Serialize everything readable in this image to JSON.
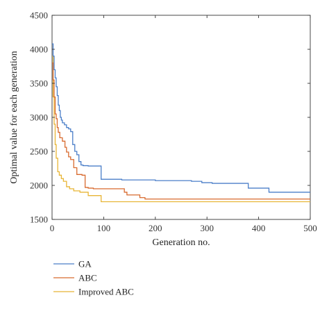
{
  "chart_data": {
    "type": "line",
    "title": "",
    "xlabel": "Generation no.",
    "ylabel": "Optimal value for each generation",
    "xlim": [
      0,
      500
    ],
    "ylim": [
      1500,
      4500
    ],
    "xticks": [
      0,
      100,
      200,
      300,
      400,
      500
    ],
    "yticks": [
      1500,
      2000,
      2500,
      3000,
      3500,
      4000,
      4500
    ],
    "grid": false,
    "legend_position": "below",
    "series": [
      {
        "name": "GA",
        "color": "#4a7ec8",
        "step": true,
        "points": [
          [
            0,
            4080
          ],
          [
            2,
            3900
          ],
          [
            4,
            3700
          ],
          [
            6,
            3580
          ],
          [
            8,
            3450
          ],
          [
            10,
            3320
          ],
          [
            12,
            3180
          ],
          [
            14,
            3100
          ],
          [
            16,
            3000
          ],
          [
            18,
            2960
          ],
          [
            20,
            2920
          ],
          [
            24,
            2890
          ],
          [
            28,
            2850
          ],
          [
            32,
            2830
          ],
          [
            36,
            2790
          ],
          [
            40,
            2600
          ],
          [
            44,
            2500
          ],
          [
            48,
            2450
          ],
          [
            52,
            2350
          ],
          [
            56,
            2300
          ],
          [
            60,
            2290
          ],
          [
            70,
            2285
          ],
          [
            95,
            2090
          ],
          [
            135,
            2080
          ],
          [
            200,
            2070
          ],
          [
            270,
            2060
          ],
          [
            290,
            2040
          ],
          [
            310,
            2030
          ],
          [
            380,
            1960
          ],
          [
            420,
            1900
          ],
          [
            500,
            1900
          ]
        ]
      },
      {
        "name": "ABC",
        "color": "#d86a2e",
        "step": true,
        "points": [
          [
            0,
            3800
          ],
          [
            2,
            3550
          ],
          [
            4,
            3300
          ],
          [
            6,
            3050
          ],
          [
            8,
            2980
          ],
          [
            10,
            2850
          ],
          [
            12,
            2780
          ],
          [
            15,
            2700
          ],
          [
            20,
            2650
          ],
          [
            25,
            2560
          ],
          [
            28,
            2490
          ],
          [
            32,
            2420
          ],
          [
            36,
            2380
          ],
          [
            42,
            2260
          ],
          [
            48,
            2160
          ],
          [
            58,
            2150
          ],
          [
            64,
            1970
          ],
          [
            70,
            1960
          ],
          [
            80,
            1950
          ],
          [
            135,
            1950
          ],
          [
            140,
            1900
          ],
          [
            145,
            1860
          ],
          [
            170,
            1820
          ],
          [
            180,
            1800
          ],
          [
            500,
            1800
          ]
        ]
      },
      {
        "name": "Improved ABC",
        "color": "#e8b535",
        "step": true,
        "points": [
          [
            0,
            3900
          ],
          [
            2,
            3300
          ],
          [
            4,
            2900
          ],
          [
            6,
            2600
          ],
          [
            8,
            2400
          ],
          [
            11,
            2200
          ],
          [
            14,
            2150
          ],
          [
            18,
            2100
          ],
          [
            22,
            2060
          ],
          [
            28,
            1980
          ],
          [
            34,
            1950
          ],
          [
            42,
            1920
          ],
          [
            54,
            1900
          ],
          [
            70,
            1850
          ],
          [
            95,
            1760
          ],
          [
            500,
            1760
          ]
        ]
      }
    ]
  }
}
